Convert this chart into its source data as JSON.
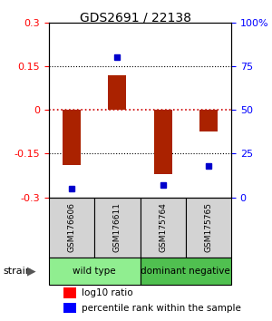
{
  "title": "GDS2691 / 22138",
  "samples": [
    "GSM176606",
    "GSM176611",
    "GSM175764",
    "GSM175765"
  ],
  "log10_ratio": [
    -0.19,
    0.12,
    -0.22,
    -0.075
  ],
  "percentile_rank": [
    5,
    80,
    7,
    18
  ],
  "groups": [
    {
      "label": "wild type",
      "color": "#90ee90",
      "samples": [
        0,
        1
      ]
    },
    {
      "label": "dominant negative",
      "color": "#50c050",
      "samples": [
        2,
        3
      ]
    }
  ],
  "ylim": [
    -0.3,
    0.3
  ],
  "yticks_left": [
    -0.3,
    -0.15,
    0,
    0.15,
    0.3
  ],
  "yticks_right": [
    0,
    25,
    50,
    75,
    100
  ],
  "bar_color": "#aa2200",
  "dot_color": "#0000cc",
  "hline_color": "#cc0000",
  "grid_color": "#000000",
  "bar_width": 0.4
}
